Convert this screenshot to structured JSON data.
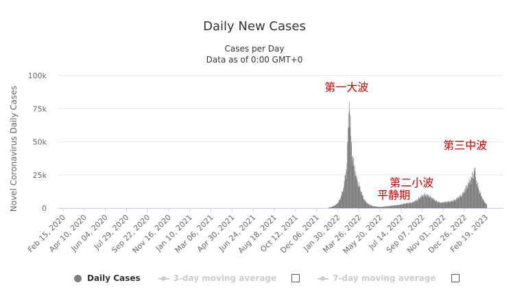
{
  "chart_data": {
    "type": "bar",
    "title": "Daily New Cases",
    "subtitle_lines": [
      "Cases per Day",
      "Data as of 0:00 GMT+0"
    ],
    "xlabel": "",
    "ylabel": "Novel Coronavirus Daily Cases",
    "ylim": [
      0,
      100000
    ],
    "y_ticks": [
      0,
      25000,
      50000,
      75000,
      100000
    ],
    "y_tick_labels": [
      "0",
      "25k",
      "50k",
      "75k",
      "100k"
    ],
    "x_tick_labels": [
      "Feb 15, 2020",
      "Apr 10, 2020",
      "Jun 04, 2020",
      "Jul 29, 2020",
      "Sep 22, 2020",
      "Nov 16, 2020",
      "Jan 10, 2021",
      "Mar 06, 2021",
      "Apr 30, 2021",
      "Jun 24, 2021",
      "Aug 18, 2021",
      "Oct 12, 2021",
      "Dec 06, 2021",
      "Jan 30, 2022",
      "Mar 26, 2022",
      "May 20, 2022",
      "Jul 14, 2022",
      "Sep 07, 2022",
      "Nov 01, 2022",
      "Dec 26, 2022",
      "Feb 19, 2023"
    ],
    "grid": true,
    "legend_position": "bottom-left",
    "series": [
      {
        "name": "Daily Cases",
        "color": "#7f7f7f",
        "points": [
          [
            "2022-01-05",
            300
          ],
          [
            "2022-01-15",
            1000
          ],
          [
            "2022-01-25",
            2500
          ],
          [
            "2022-02-01",
            4500
          ],
          [
            "2022-02-08",
            9000
          ],
          [
            "2022-02-14",
            15000
          ],
          [
            "2022-02-18",
            22000
          ],
          [
            "2022-02-22",
            30000
          ],
          [
            "2022-02-25",
            50000
          ],
          [
            "2022-02-27",
            66000
          ],
          [
            "2022-03-01",
            79000
          ],
          [
            "2022-03-02",
            75000
          ],
          [
            "2022-03-04",
            60000
          ],
          [
            "2022-03-06",
            48000
          ],
          [
            "2022-03-09",
            40000
          ],
          [
            "2022-03-12",
            33000
          ],
          [
            "2022-03-16",
            28000
          ],
          [
            "2022-03-20",
            22000
          ],
          [
            "2022-03-25",
            18000
          ],
          [
            "2022-03-30",
            14000
          ],
          [
            "2022-04-05",
            9000
          ],
          [
            "2022-04-12",
            5000
          ],
          [
            "2022-04-20",
            3000
          ],
          [
            "2022-05-01",
            1500
          ],
          [
            "2022-05-20",
            800
          ],
          [
            "2022-06-10",
            1500
          ],
          [
            "2022-06-25",
            2000
          ],
          [
            "2022-07-10",
            2500
          ],
          [
            "2022-07-25",
            3500
          ],
          [
            "2022-08-10",
            4000
          ],
          [
            "2022-08-25",
            6000
          ],
          [
            "2022-09-05",
            9000
          ],
          [
            "2022-09-15",
            10000
          ],
          [
            "2022-09-25",
            9000
          ],
          [
            "2022-10-05",
            7000
          ],
          [
            "2022-10-15",
            5000
          ],
          [
            "2022-10-25",
            4000
          ],
          [
            "2022-11-05",
            4500
          ],
          [
            "2022-11-20",
            5000
          ],
          [
            "2022-12-01",
            6000
          ],
          [
            "2022-12-10",
            8000
          ],
          [
            "2022-12-20",
            10000
          ],
          [
            "2022-12-28",
            14000
          ],
          [
            "2023-01-05",
            18000
          ],
          [
            "2023-01-12",
            22000
          ],
          [
            "2023-01-18",
            25000
          ],
          [
            "2023-01-22",
            29000
          ],
          [
            "2023-01-26",
            20000
          ],
          [
            "2023-02-01",
            14000
          ],
          [
            "2023-02-08",
            9000
          ],
          [
            "2023-02-15",
            5000
          ],
          [
            "2023-02-22",
            2500
          ]
        ]
      },
      {
        "name": "3-day moving average",
        "color": "#cccccc",
        "visible": false
      },
      {
        "name": "7-day moving average",
        "color": "#cccccc",
        "visible": false
      }
    ],
    "annotations": [
      {
        "text": "第一大波",
        "date": "2022-03-01",
        "value": 79000
      },
      {
        "text": "平静期",
        "date": "2022-05-20",
        "value": 800
      },
      {
        "text": "第二小波",
        "date": "2022-09-15",
        "value": 10000
      },
      {
        "text": "第三中波",
        "date": "2023-01-22",
        "value": 29000
      }
    ]
  },
  "legend": {
    "items": [
      {
        "label": "Daily Cases",
        "active": true
      },
      {
        "label": "3-day moving average",
        "active": false
      },
      {
        "label": "7-day moving average",
        "active": false
      }
    ]
  },
  "colors": {
    "bar": "#7f7f7f",
    "grid": "#e6e6e6",
    "annotation": "#c00000",
    "inactive": "#cccccc"
  }
}
